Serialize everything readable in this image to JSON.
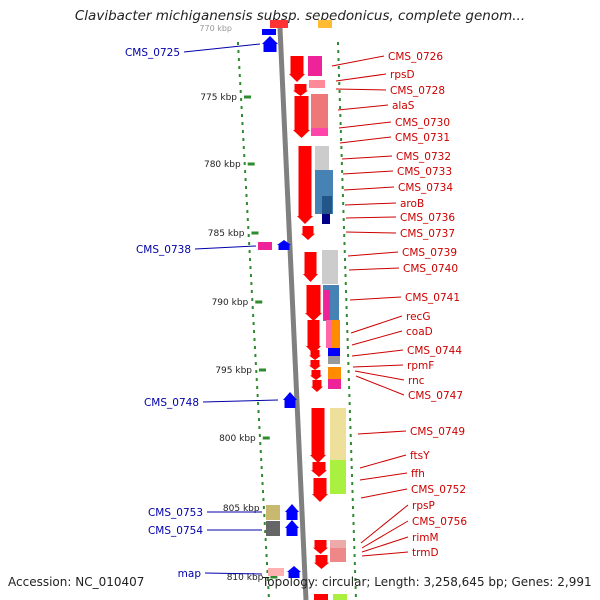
{
  "title": "Clavibacter michiganensis subsp. sepedonicus, complete genom...",
  "footer": {
    "accession": "Accession: NC_010407",
    "topology": "Topology: circular; Length: 3,258,645 bp; Genes: 2,991"
  },
  "colors": {
    "backbone": "#808080",
    "gene_red": "#ff0000",
    "gene_blue": "#0000ff",
    "label_red": "#cc0000",
    "label_blue": "#0000aa",
    "tick_green": "#2e8b2e"
  },
  "scale": {
    "unit": "kbp",
    "ticks": [
      "775 kbp",
      "780 kbp",
      "785 kbp",
      "790 kbp",
      "795 kbp",
      "800 kbp",
      "805 kbp",
      "810 kbp"
    ],
    "top_partial": "770 kbp"
  },
  "left_labels": [
    "CMS_0725",
    "CMS_0738",
    "CMS_0748",
    "CMS_0753",
    "CMS_0754",
    "map"
  ],
  "right_labels": [
    "CMS_0726",
    "rpsD",
    "CMS_0728",
    "alaS",
    "CMS_0730",
    "CMS_0731",
    "CMS_0732",
    "CMS_0733",
    "CMS_0734",
    "aroB",
    "CMS_0736",
    "CMS_0737",
    "CMS_0739",
    "CMS_0740",
    "CMS_0741",
    "recG",
    "coaD",
    "CMS_0744",
    "rpmF",
    "rnc",
    "CMS_0747",
    "CMS_0749",
    "ftsY",
    "ffh",
    "CMS_0752",
    "rpsP",
    "CMS_0756",
    "rimM",
    "trmD"
  ]
}
